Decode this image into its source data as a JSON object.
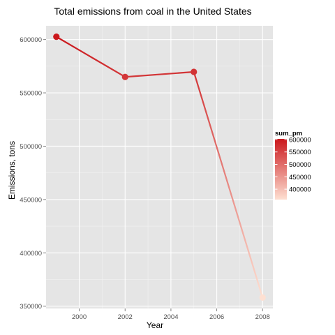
{
  "chart_data": {
    "type": "line",
    "title": "Total emissions from coal in the United States",
    "xlabel": "Year",
    "ylabel": "Emissions, tons",
    "x": [
      1999,
      2002,
      2005,
      2008
    ],
    "values": [
      602624,
      564936,
      569655,
      358084
    ],
    "xlim": [
      1998.55,
      2008.45
    ],
    "ylim": [
      347857,
      612851
    ],
    "xticks": [
      2000,
      2002,
      2004,
      2006,
      2008
    ],
    "yticks": [
      350000,
      400000,
      450000,
      500000,
      550000,
      600000
    ],
    "xtick_labels": [
      "2000",
      "2002",
      "2004",
      "2006",
      "2008"
    ],
    "ytick_labels": [
      "350000",
      "400000",
      "450000",
      "500000",
      "550000",
      "600000"
    ],
    "grid": true,
    "legend": {
      "title": "sum_pm",
      "placement": "right",
      "breaks": [
        400000,
        450000,
        500000,
        550000,
        600000
      ],
      "labels": [
        "400000",
        "450000",
        "500000",
        "550000",
        "600000"
      ],
      "low_color": "#fee0d2",
      "high_color": "#cb181d"
    },
    "colors": {
      "panel": "#e5e5e5",
      "grid_major": "#ffffff",
      "grid_minor": "#f2f2f2"
    }
  }
}
